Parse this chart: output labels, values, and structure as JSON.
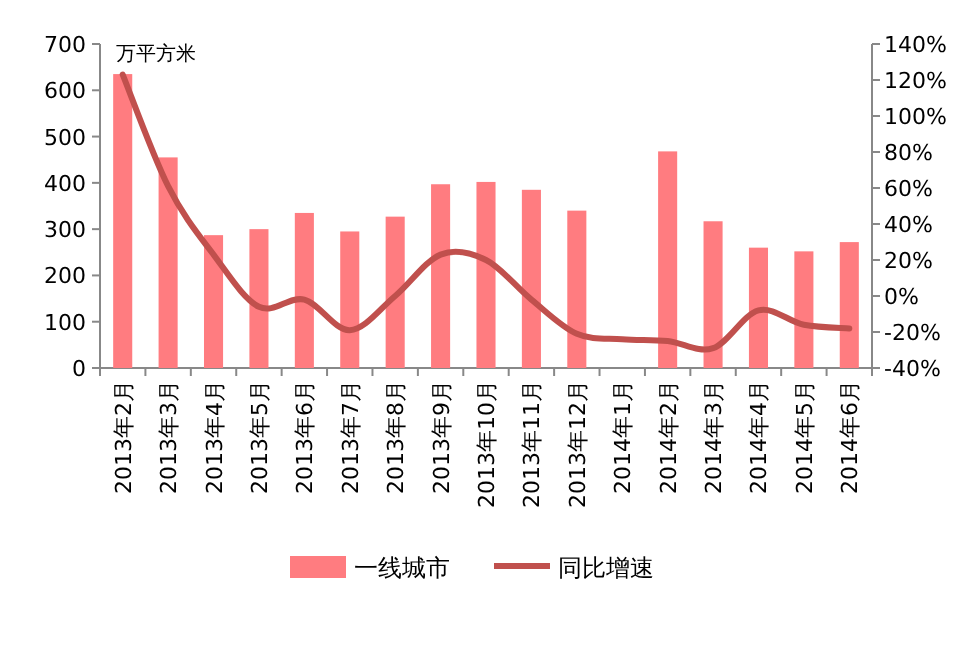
{
  "chart_data": {
    "type": "bar",
    "ylabel": "万平方米",
    "legend": "bottom",
    "categories": [
      "2013年2月",
      "2013年3月",
      "2013年4月",
      "2013年5月",
      "2013年6月",
      "2013年7月",
      "2013年8月",
      "2013年9月",
      "2013年10月",
      "2013年11月",
      "2013年12月",
      "2014年1月",
      "2014年2月",
      "2014年3月",
      "2014年4月",
      "2014年5月",
      "2014年6月"
    ],
    "series": [
      {
        "name": "一线城市",
        "color": "#ff7c80",
        "values": [
          635,
          455,
          287,
          300,
          335,
          295,
          327,
          397,
          402,
          385,
          340,
          null,
          468,
          317,
          260,
          252,
          272
        ]
      },
      {
        "name": "同比增速",
        "type": "line",
        "axis": "y2",
        "color": "#c0504d",
        "values": [
          123,
          61,
          23,
          -6,
          -2,
          -19,
          0,
          23,
          20,
          -2,
          -21,
          -24,
          -25,
          -29,
          -8,
          -16,
          -18
        ]
      }
    ],
    "ylim": [
      0,
      700
    ],
    "yticks": [
      0,
      100,
      200,
      300,
      400,
      500,
      600,
      700
    ],
    "y2lim": [
      -40,
      140
    ],
    "y2ticks": [
      {
        "value": -40,
        "label": "-40%"
      },
      {
        "value": -20,
        "label": "-20%"
      },
      {
        "value": 0,
        "label": "0%"
      },
      {
        "value": 20,
        "label": "20%"
      },
      {
        "value": 40,
        "label": "40%"
      },
      {
        "value": 60,
        "label": "60%"
      },
      {
        "value": 80,
        "label": "80%"
      },
      {
        "value": 100,
        "label": "100%"
      },
      {
        "value": 120,
        "label": "120%"
      },
      {
        "value": 140,
        "label": "140%"
      }
    ]
  }
}
